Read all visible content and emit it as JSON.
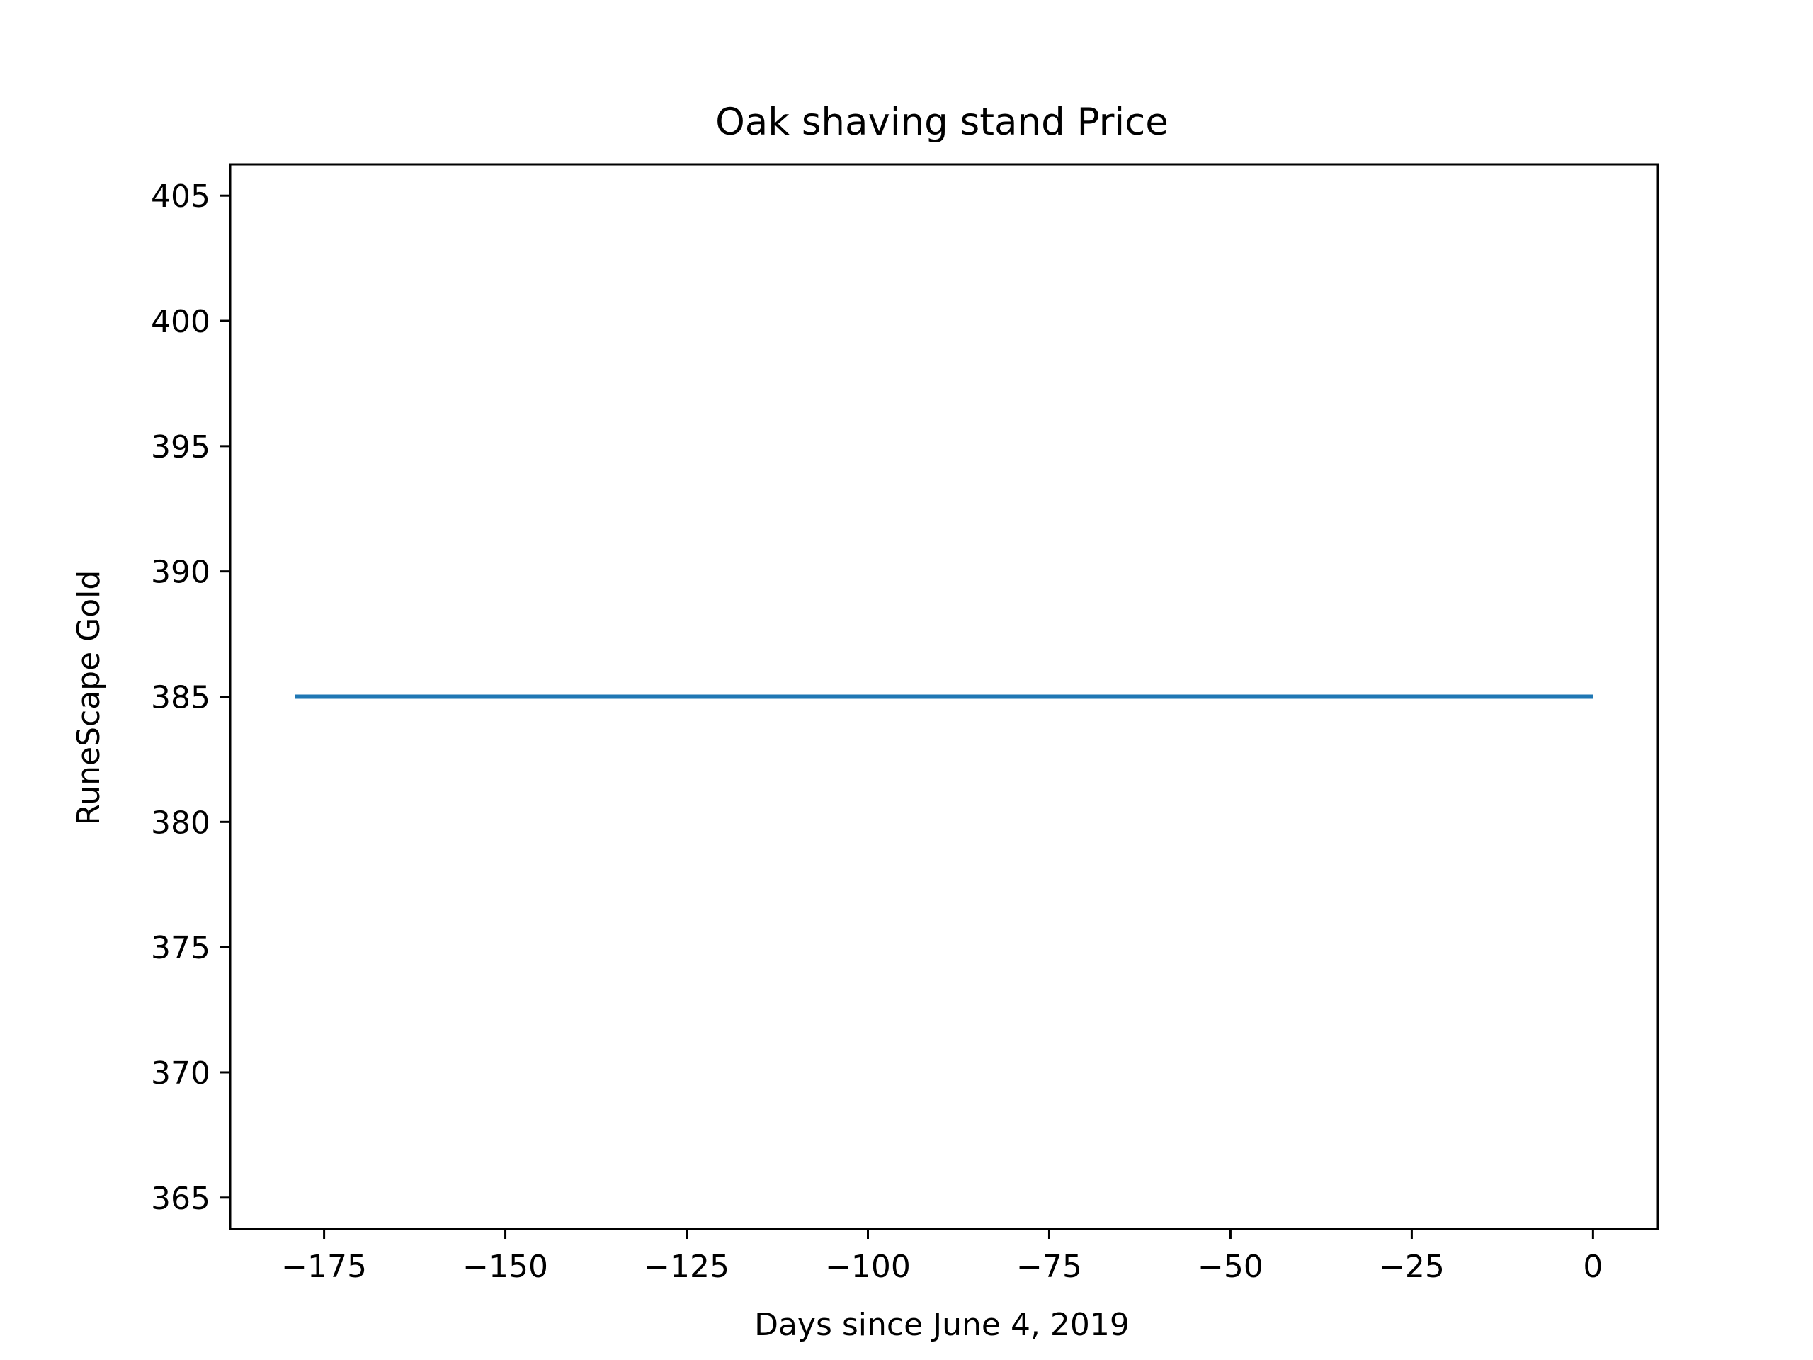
{
  "chart_data": {
    "type": "line",
    "title": "Oak shaving stand Price",
    "xlabel": "Days since June 4, 2019",
    "ylabel": "RuneScape Gold",
    "xlim": [
      -187.95,
      8.95
    ],
    "ylim": [
      363.75,
      406.25
    ],
    "xticks": [
      -175,
      -150,
      -125,
      -100,
      -75,
      -50,
      -25,
      0
    ],
    "xtick_labels": [
      "−175",
      "−150",
      "−125",
      "−100",
      "−75",
      "−50",
      "−25",
      "0"
    ],
    "yticks": [
      365,
      370,
      375,
      380,
      385,
      390,
      395,
      400,
      405
    ],
    "ytick_labels": [
      "365",
      "370",
      "375",
      "380",
      "385",
      "390",
      "395",
      "400",
      "405"
    ],
    "grid": false,
    "series": [
      {
        "name": "Oak shaving stand",
        "color": "#1f77b4",
        "x": [
          -179,
          -150,
          -125,
          -100,
          -75,
          -50,
          -25,
          0
        ],
        "y": [
          385,
          385,
          385,
          385,
          385,
          385,
          385,
          385
        ]
      }
    ]
  }
}
